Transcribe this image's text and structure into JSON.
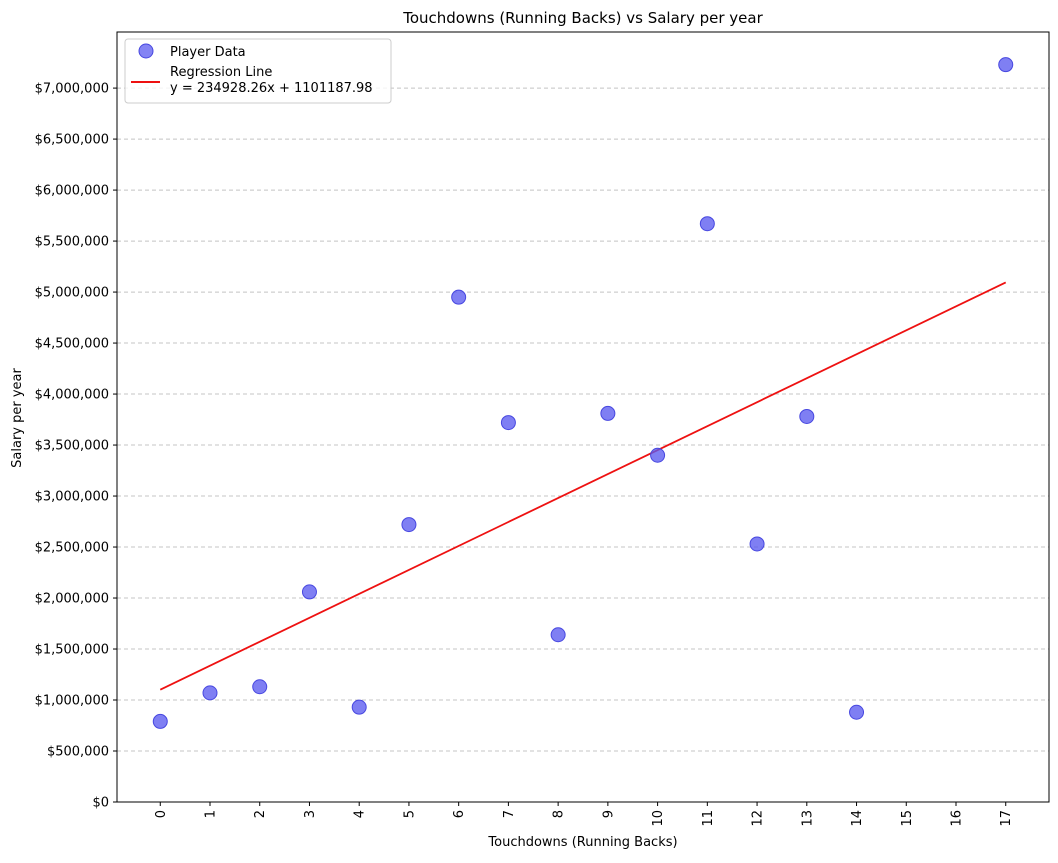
{
  "chart_data": {
    "type": "scatter",
    "title": "Touchdowns (Running Backs) vs Salary per year",
    "xlabel": "Touchdowns (Running Backs)",
    "ylabel": "Salary per year",
    "xlim": [
      -0.87,
      17.87
    ],
    "ylim": [
      0,
      7550000
    ],
    "x_ticks": [
      0,
      1,
      2,
      3,
      4,
      5,
      6,
      7,
      8,
      9,
      10,
      11,
      12,
      13,
      14,
      15,
      16,
      17
    ],
    "x_tick_labels": [
      "0",
      "1",
      "2",
      "3",
      "4",
      "5",
      "6",
      "7",
      "8",
      "9",
      "10",
      "11",
      "12",
      "13",
      "14",
      "15",
      "16",
      "17"
    ],
    "y_ticks": [
      0,
      500000,
      1000000,
      1500000,
      2000000,
      2500000,
      3000000,
      3500000,
      4000000,
      4500000,
      5000000,
      5500000,
      6000000,
      6500000,
      7000000
    ],
    "y_tick_labels": [
      "$0",
      "$500,000",
      "$1,000,000",
      "$1,500,000",
      "$2,000,000",
      "$2,500,000",
      "$3,000,000",
      "$3,500,000",
      "$4,000,000",
      "$4,500,000",
      "$5,000,000",
      "$5,500,000",
      "$6,000,000",
      "$6,500,000",
      "$7,000,000"
    ],
    "grid": {
      "y": true,
      "x": false,
      "style": "dashed"
    },
    "legend_position": "top-left",
    "series": [
      {
        "name": "Player Data",
        "kind": "scatter",
        "color": "#5b5bf0",
        "points": [
          {
            "x": 0,
            "y": 790000
          },
          {
            "x": 1,
            "y": 1070000
          },
          {
            "x": 2,
            "y": 1130000
          },
          {
            "x": 3,
            "y": 2060000
          },
          {
            "x": 4,
            "y": 930000
          },
          {
            "x": 5,
            "y": 2720000
          },
          {
            "x": 6,
            "y": 4950000
          },
          {
            "x": 7,
            "y": 3720000
          },
          {
            "x": 8,
            "y": 1640000
          },
          {
            "x": 9,
            "y": 3810000
          },
          {
            "x": 10,
            "y": 3400000
          },
          {
            "x": 11,
            "y": 5670000
          },
          {
            "x": 12,
            "y": 2530000
          },
          {
            "x": 13,
            "y": 3780000
          },
          {
            "x": 14,
            "y": 880000
          },
          {
            "x": 17,
            "y": 7230000
          }
        ]
      },
      {
        "name": "Regression Line\ny = 234928.26x + 1101187.98",
        "kind": "line",
        "color": "#ee1111",
        "slope": 234928.26,
        "intercept": 1101187.98,
        "x_range": [
          0,
          17
        ]
      }
    ],
    "legend": [
      {
        "label": "Player Data",
        "kind": "marker"
      },
      {
        "label": "Regression Line",
        "sublabel": "y = 234928.26x + 1101187.98",
        "kind": "line"
      }
    ]
  }
}
